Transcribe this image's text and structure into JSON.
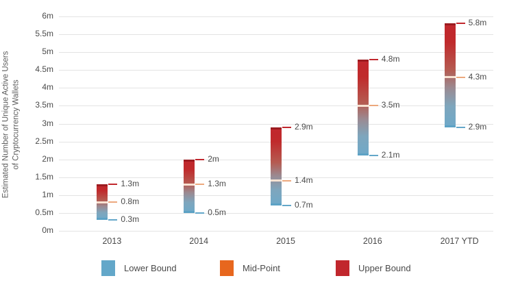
{
  "chart_data": {
    "type": "bar",
    "subtype": "floating-range-bars",
    "title": "",
    "ylabel_line1": "Estimated Number of Unique Active Users",
    "ylabel_line2": "of Cryptocurrency Wallets",
    "categories": [
      "2013",
      "2014",
      "2015",
      "2016",
      "2017 YTD"
    ],
    "series": [
      {
        "name": "Lower Bound",
        "color": "#63a7c9",
        "values": [
          0.3,
          0.5,
          0.7,
          2.1,
          2.9
        ],
        "labels": [
          "0.3m",
          "0.5m",
          "0.7m",
          "2.1m",
          "2.9m"
        ]
      },
      {
        "name": "Mid-Point",
        "color": "#e7671e",
        "values": [
          0.8,
          1.3,
          1.4,
          3.5,
          4.3
        ],
        "labels": [
          "0.8m",
          "1.3m",
          "1.4m",
          "3.5m",
          "4.3m"
        ]
      },
      {
        "name": "Upper Bound",
        "color": "#c1272d",
        "values": [
          1.3,
          2.0,
          2.9,
          4.8,
          5.8
        ],
        "labels": [
          "1.3m",
          "2m",
          "2.9m",
          "4.8m",
          "5.8m"
        ]
      }
    ],
    "ylim": [
      0,
      6
    ],
    "ytick_step": 0.5,
    "ytick_labels": [
      "0m",
      "0.5m",
      "1m",
      "1.5m",
      "2m",
      "2.5m",
      "3m",
      "3.5m",
      "4m",
      "4.5m",
      "5m",
      "5.5m",
      "6m"
    ],
    "grid": true,
    "legend_position": "bottom",
    "legend": [
      {
        "label": "Lower Bound",
        "color": "#63a7c9"
      },
      {
        "label": "Mid-Point",
        "color": "#e7671e"
      },
      {
        "label": "Upper Bound",
        "color": "#c1272d"
      }
    ]
  },
  "styles": {
    "background": "#ffffff",
    "gridline_color": "#e3e3e3",
    "text_color": "#4a4a4a",
    "axis_title_color": "#5d5d5d",
    "bar_top_cap_color": "#9c1b20",
    "bar_bottom_cap_color": "#5ca2c5",
    "bar_mid_line_color": "#f8e2d2",
    "mid_tick_color": "#eca87d"
  }
}
